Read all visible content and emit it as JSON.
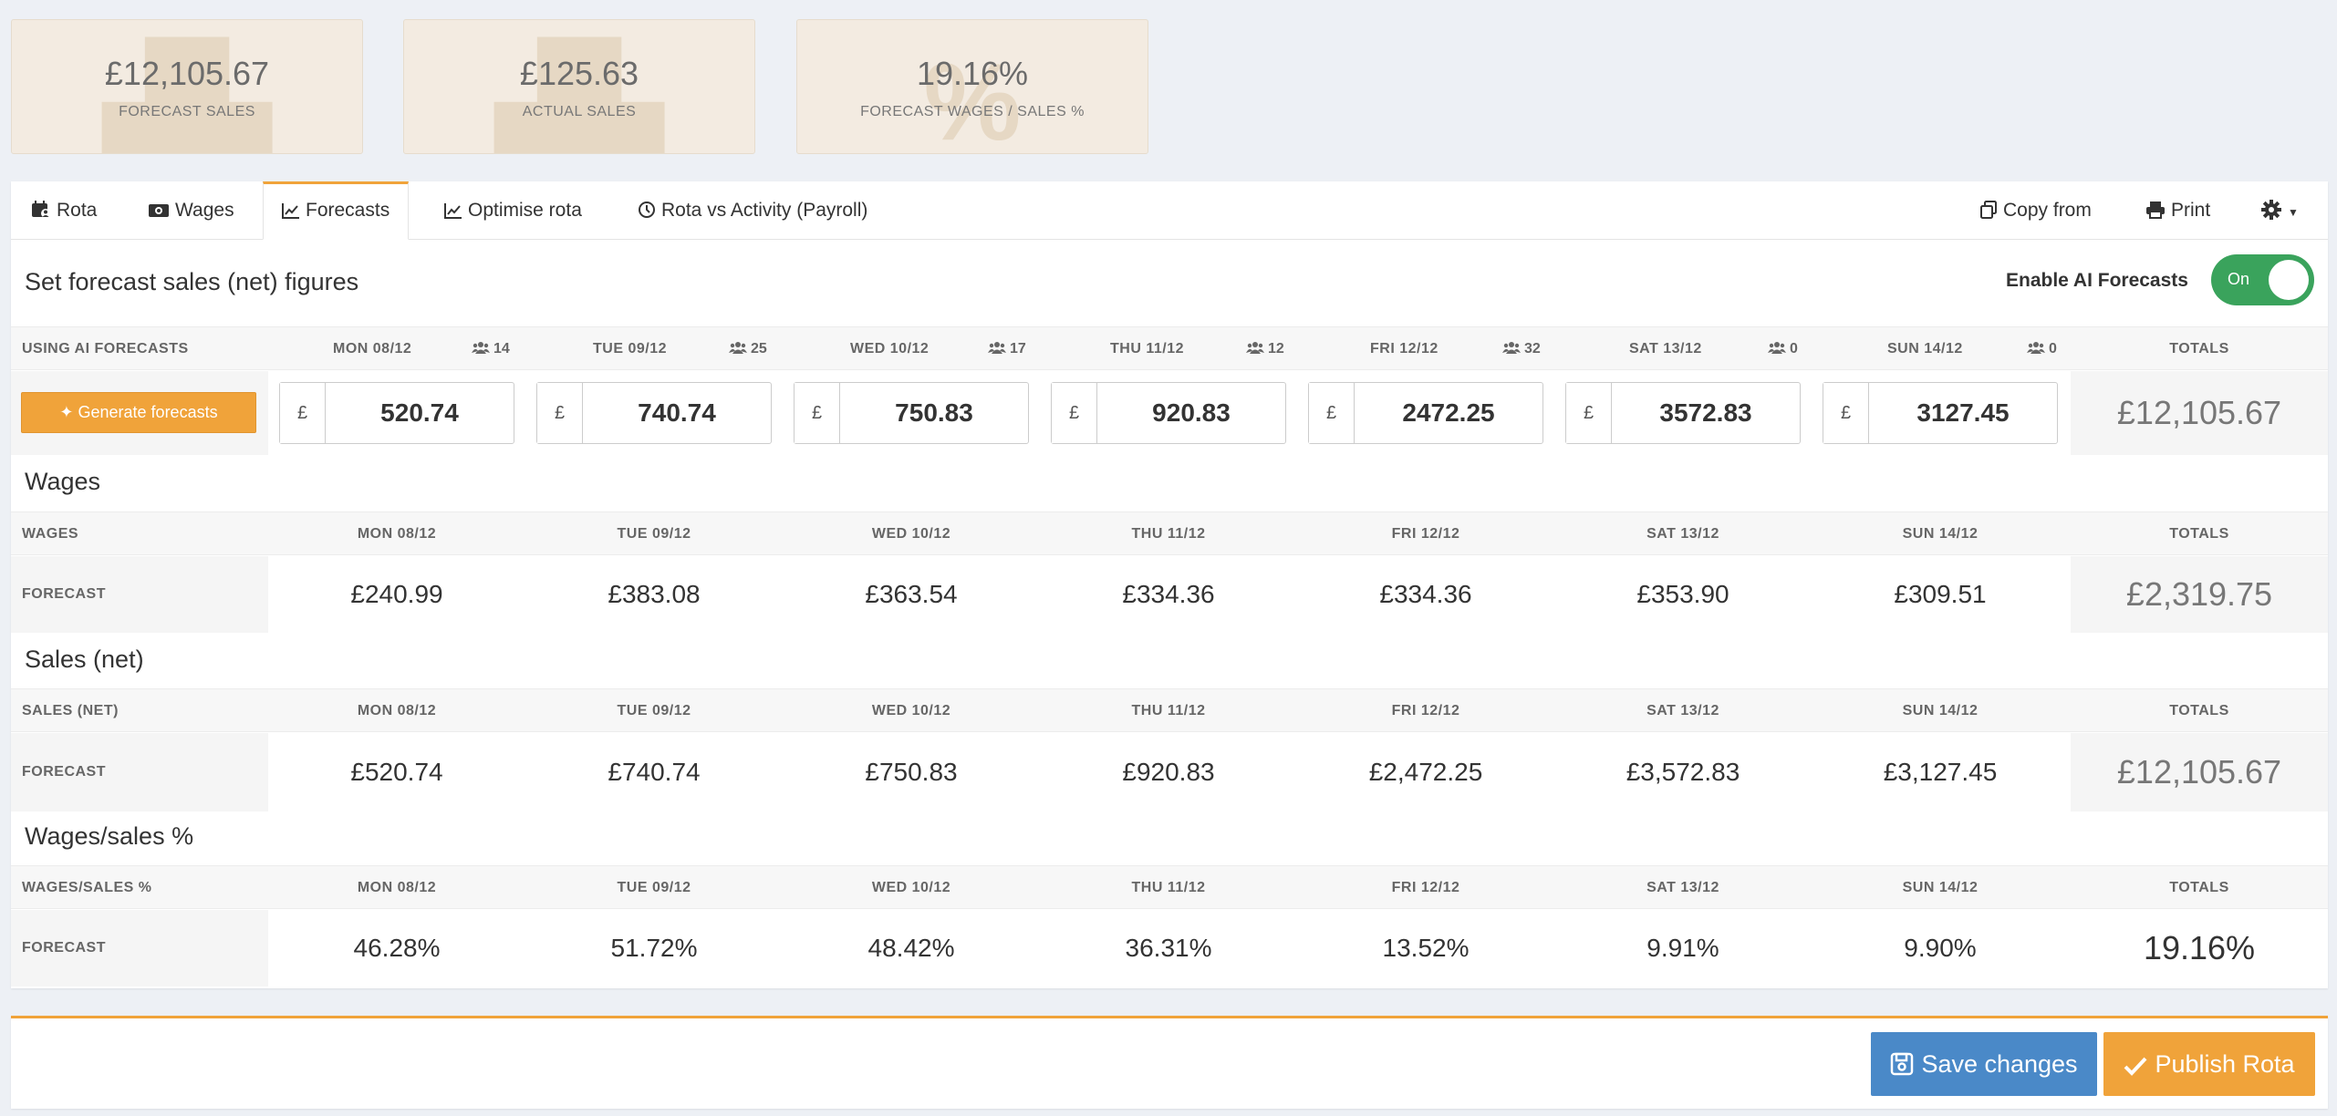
{
  "kpis": [
    {
      "value": "£12,105.67",
      "label": "FORECAST SALES"
    },
    {
      "value": "£125.63",
      "label": "ACTUAL SALES"
    },
    {
      "value": "19.16%",
      "label": "FORECAST WAGES / SALES %"
    }
  ],
  "tabs": {
    "rota": "Rota",
    "wages": "Wages",
    "forecasts": "Forecasts",
    "optimise": "Optimise rota",
    "rota_vs_activity": "Rota vs Activity (Payroll)",
    "copy_from": "Copy from",
    "print": "Print"
  },
  "forecast_section": {
    "title": "Set forecast sales (net) figures",
    "ai_label": "Enable AI Forecasts",
    "ai_toggle": "On",
    "header_first": "USING AI FORECASTS",
    "totals_label": "TOTALS",
    "generate_button": "Generate forecasts",
    "currency": "£",
    "total": "£12,105.67",
    "days": [
      {
        "day": "MON 08/12",
        "staff": "14",
        "value": "520.74"
      },
      {
        "day": "TUE 09/12",
        "staff": "25",
        "value": "740.74"
      },
      {
        "day": "WED 10/12",
        "staff": "17",
        "value": "750.83"
      },
      {
        "day": "THU 11/12",
        "staff": "12",
        "value": "920.83"
      },
      {
        "day": "FRI 12/12",
        "staff": "32",
        "value": "2472.25"
      },
      {
        "day": "SAT 13/12",
        "staff": "0",
        "value": "3572.83"
      },
      {
        "day": "SUN 14/12",
        "staff": "0",
        "value": "3127.45"
      }
    ]
  },
  "day_headers": [
    "MON 08/12",
    "TUE 09/12",
    "WED 10/12",
    "THU 11/12",
    "FRI 12/12",
    "SAT 13/12",
    "SUN 14/12"
  ],
  "wages": {
    "title": "Wages",
    "header_first": "WAGES",
    "totals_label": "TOTALS",
    "row_label": "FORECAST",
    "values": [
      "£240.99",
      "£383.08",
      "£363.54",
      "£334.36",
      "£334.36",
      "£353.90",
      "£309.51"
    ],
    "total": "£2,319.75"
  },
  "sales": {
    "title": "Sales (net)",
    "header_first": "SALES (NET)",
    "totals_label": "TOTALS",
    "row_label": "FORECAST",
    "values": [
      "£520.74",
      "£740.74",
      "£750.83",
      "£920.83",
      "£2,472.25",
      "£3,572.83",
      "£3,127.45"
    ],
    "total": "£12,105.67"
  },
  "wages_sales": {
    "title": "Wages/sales %",
    "header_first": "WAGES/SALES %",
    "totals_label": "TOTALS",
    "row_label": "FORECAST",
    "values": [
      "46.28%",
      "51.72%",
      "48.42%",
      "36.31%",
      "13.52%",
      "9.91%",
      "9.90%"
    ],
    "total": "19.16%"
  },
  "footer": {
    "save": "Save changes",
    "publish": "Publish Rota"
  },
  "colors": {
    "accent": "#f0a33a",
    "save": "#4a89c8",
    "toggle_on": "#3aa35c"
  }
}
